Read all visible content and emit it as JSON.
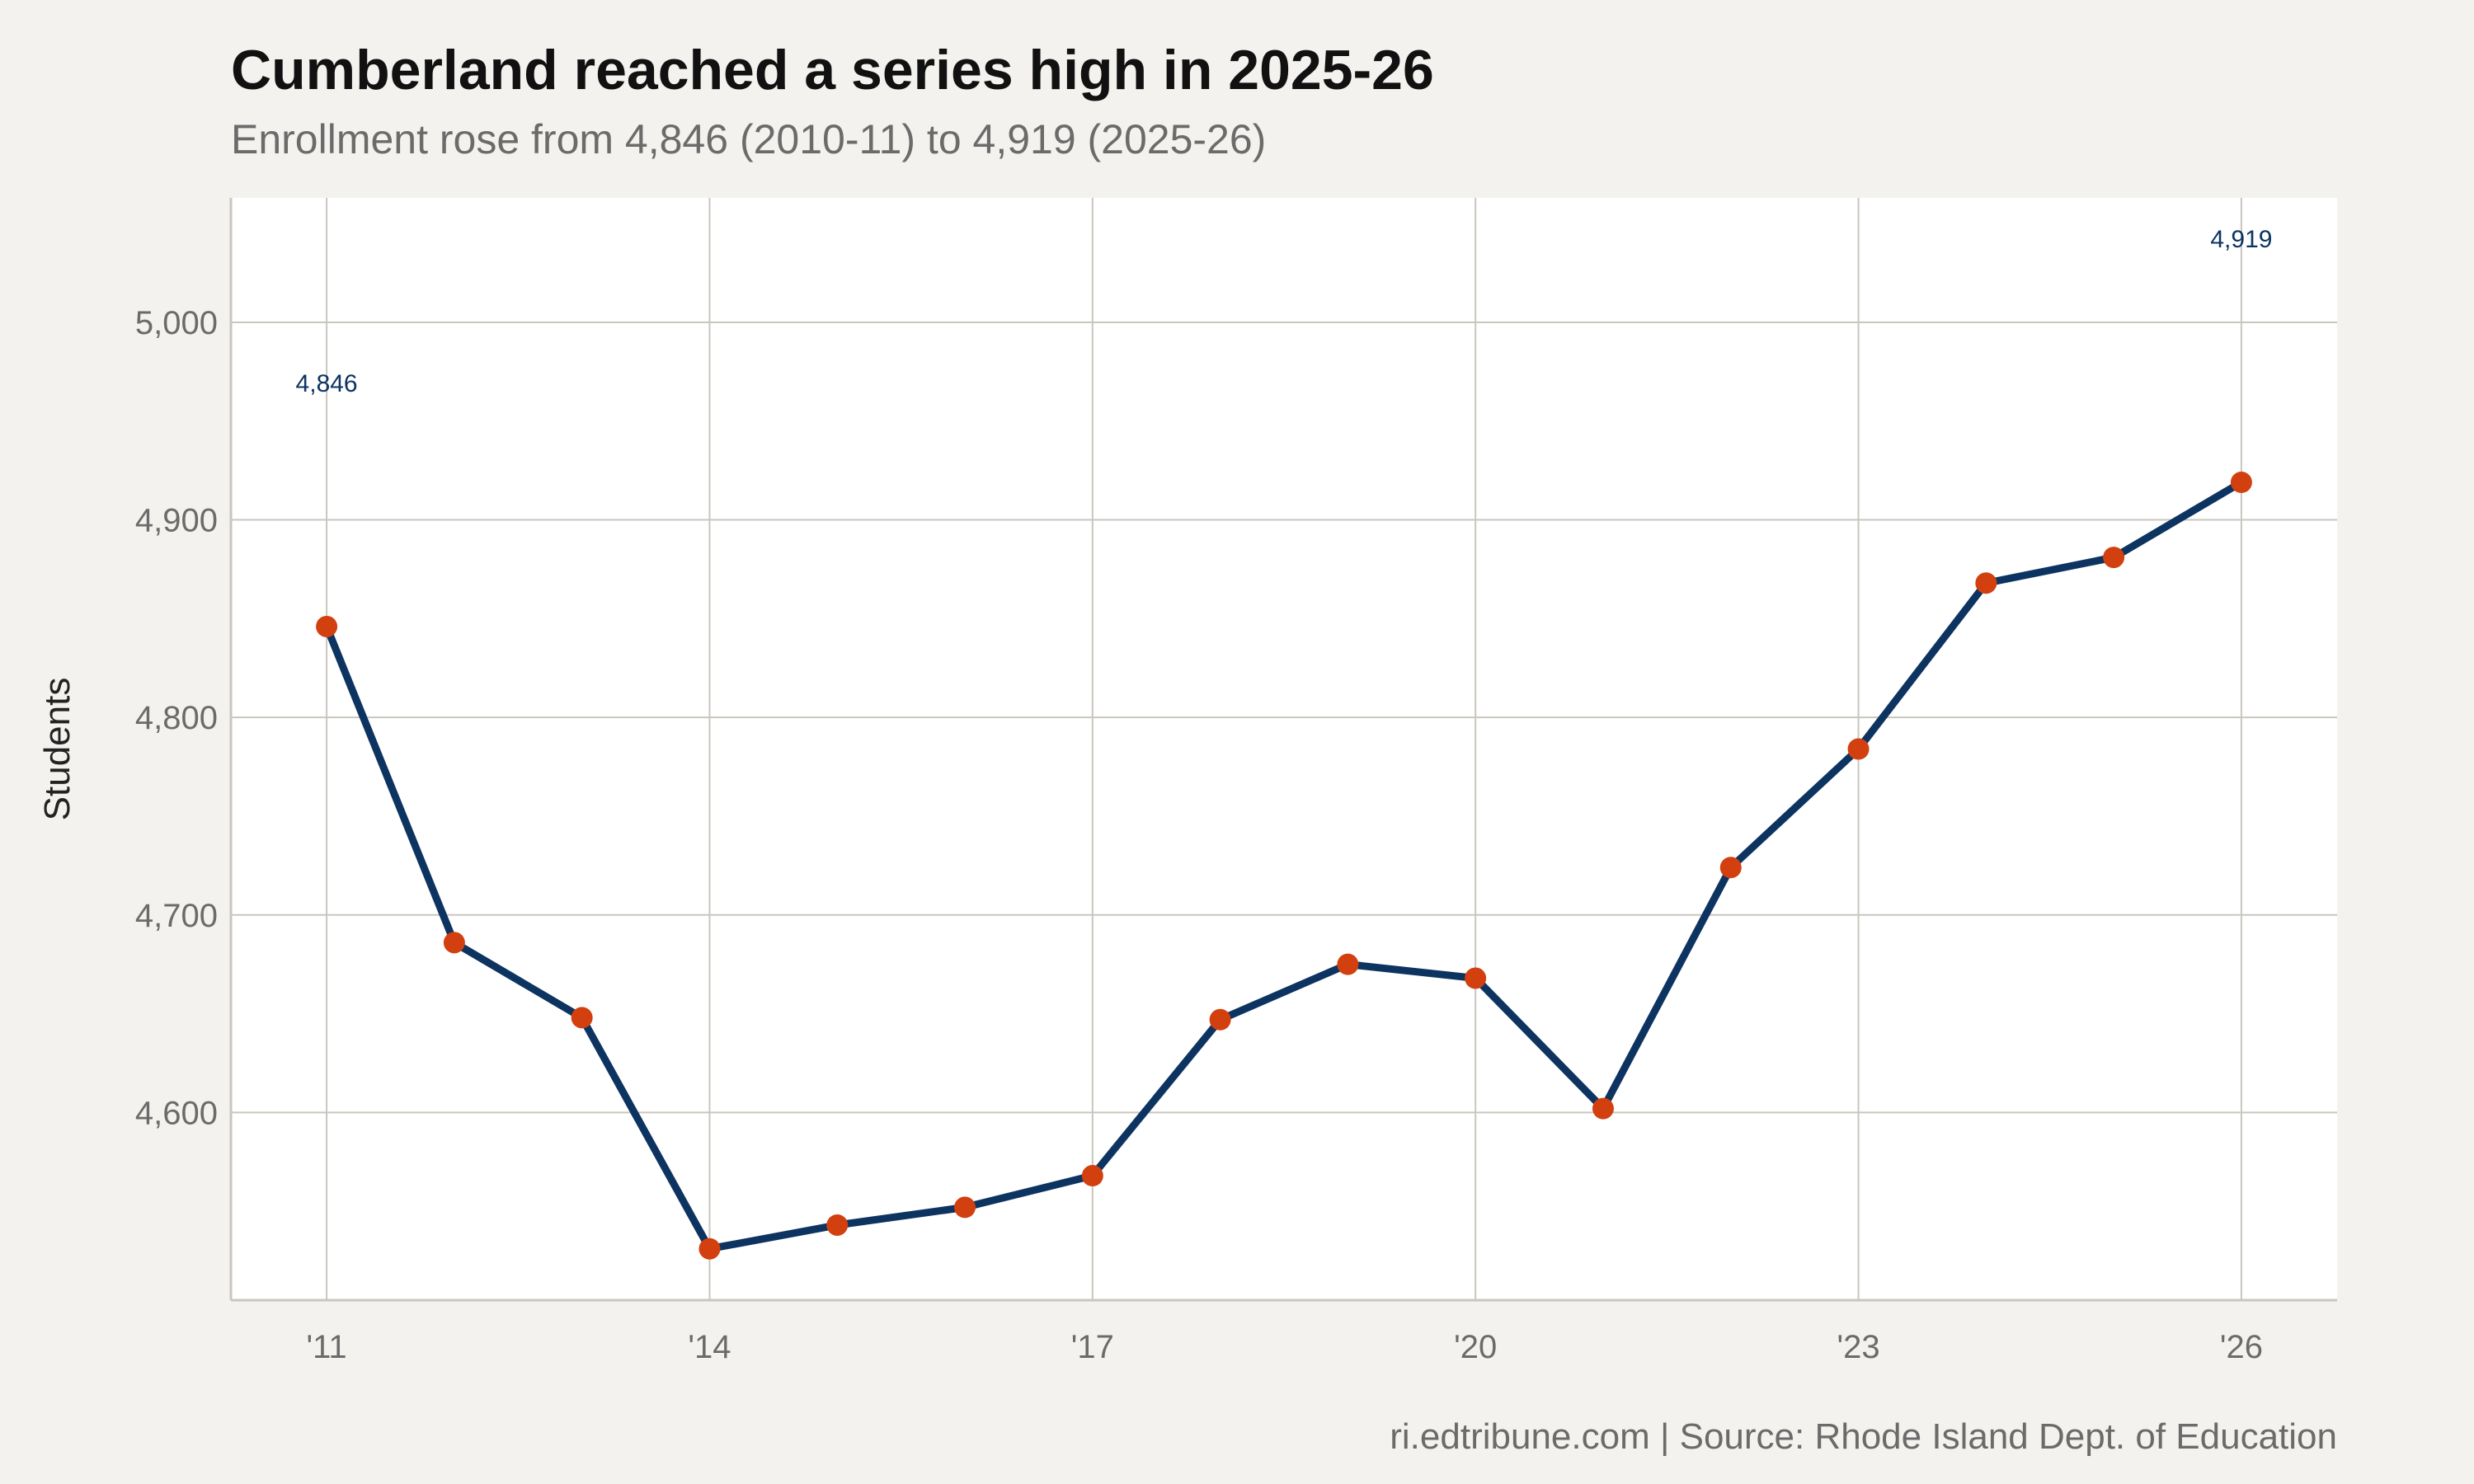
{
  "chart_data": {
    "type": "line",
    "title": "Cumberland reached a series high in 2025-26",
    "subtitle": "Enrollment rose from 4,846 (2010-11) to 4,919 (2025-26)",
    "ylabel": "Students",
    "xlabel": "",
    "x": [
      2011,
      2012,
      2013,
      2014,
      2015,
      2016,
      2017,
      2018,
      2019,
      2020,
      2021,
      2022,
      2023,
      2024,
      2025,
      2026
    ],
    "series": [
      {
        "values": [
          4846,
          4686,
          4648,
          4531,
          4543,
          4552,
          4568,
          4647,
          4675,
          4668,
          4602,
          4724,
          4784,
          4868,
          4881,
          4919
        ]
      }
    ],
    "xticks": [
      2011,
      2014,
      2017,
      2020,
      2023,
      2026
    ],
    "xtick_labels": [
      "'11",
      "'14",
      "'17",
      "'20",
      "'23",
      "'26"
    ],
    "yticks": [
      4600,
      4700,
      4800,
      4900,
      5000
    ],
    "ytick_labels": [
      "4,600",
      "4,700",
      "4,800",
      "4,900",
      "5,000"
    ],
    "xlim": [
      2010.25,
      2026.75
    ],
    "ylim": [
      4505,
      5063
    ],
    "annotations": [
      {
        "text": "4,846",
        "x": 2011,
        "value": 4846
      },
      {
        "text": "4,919",
        "x": 2026,
        "value": 4919
      }
    ],
    "grid": true,
    "colors": {
      "line": "#0d3461",
      "marker": "#d2400f",
      "annotation": "#0d3461",
      "panel": "#ffffff",
      "background": "#f4f2ee",
      "grid": "#c9c6bf"
    }
  },
  "caption": "ri.edtribune.com | Source: Rhode Island Dept. of Education"
}
